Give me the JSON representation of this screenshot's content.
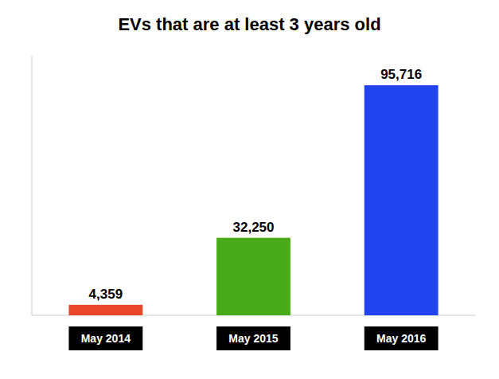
{
  "chart_data": {
    "type": "bar",
    "title": "EVs that are at least 3 years old",
    "categories": [
      "May 2014",
      "May 2015",
      "May 2016"
    ],
    "values": [
      4359,
      32250,
      95716
    ],
    "value_labels": [
      "4,359",
      "32,250",
      "95,716"
    ],
    "colors": [
      "#e8472a",
      "#4aab1a",
      "#2244ee"
    ],
    "ylim": [
      0,
      108000
    ],
    "data_labels": true,
    "tick_labels": "x",
    "grid": false
  }
}
